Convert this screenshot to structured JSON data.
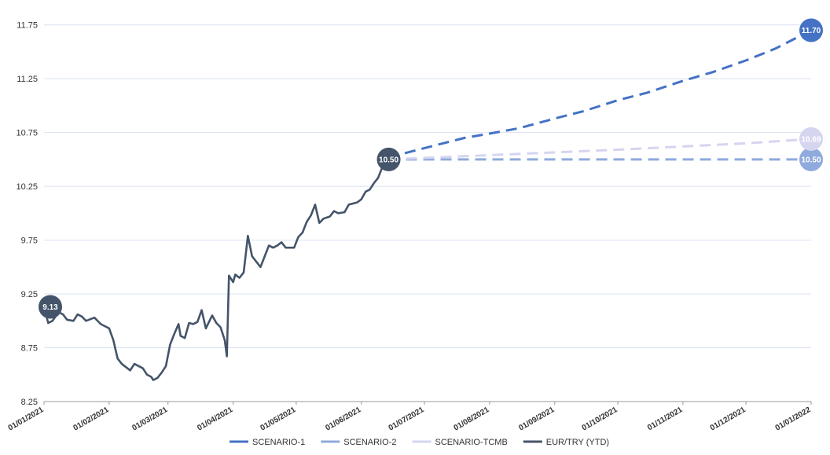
{
  "chart_data": {
    "type": "line",
    "title": "",
    "xlabel": "",
    "ylabel": "",
    "x_ticks": [
      "01/01/2021",
      "01/02/2021",
      "01/03/2021",
      "01/04/2021",
      "01/05/2021",
      "01/06/2021",
      "01/07/2021",
      "01/08/2021",
      "01/09/2021",
      "01/10/2021",
      "01/11/2021",
      "01/12/2021",
      "01/01/2022"
    ],
    "y_ticks": [
      "8.25",
      "8.75",
      "9.25",
      "9.75",
      "10.25",
      "10.75",
      "11.25",
      "11.75"
    ],
    "ylim": [
      8.25,
      11.85
    ],
    "grid": "horizontal",
    "legend_position": "bottom",
    "series": [
      {
        "name": "SCENARIO-1",
        "color": "#4472C4",
        "style": "dashed",
        "end_label": "11.70",
        "points": [
          [
            "2021-06-14",
            10.5
          ],
          [
            "2021-06-20",
            10.55
          ],
          [
            "2021-06-30",
            10.6
          ],
          [
            "2021-07-10",
            10.65
          ],
          [
            "2021-07-20",
            10.7
          ],
          [
            "2021-08-01",
            10.74
          ],
          [
            "2021-08-15",
            10.79
          ],
          [
            "2021-09-01",
            10.88
          ],
          [
            "2021-09-15",
            10.95
          ],
          [
            "2021-10-01",
            11.05
          ],
          [
            "2021-10-15",
            11.12
          ],
          [
            "2021-11-01",
            11.23
          ],
          [
            "2021-11-15",
            11.31
          ],
          [
            "2021-12-01",
            11.42
          ],
          [
            "2021-12-15",
            11.53
          ],
          [
            "2022-01-01",
            11.7
          ]
        ]
      },
      {
        "name": "SCENARIO-2",
        "color": "#8FAADC",
        "style": "dashed",
        "end_label": "10.50",
        "points": [
          [
            "2021-06-14",
            10.5
          ],
          [
            "2022-01-01",
            10.5
          ]
        ]
      },
      {
        "name": "SCENARIO-TCMB",
        "color": "#D5D5F0",
        "style": "dashed",
        "end_label": "10.69",
        "points": [
          [
            "2021-06-14",
            10.5
          ],
          [
            "2021-08-01",
            10.54
          ],
          [
            "2021-10-01",
            10.59
          ],
          [
            "2021-12-01",
            10.65
          ],
          [
            "2022-01-01",
            10.69
          ]
        ]
      },
      {
        "name": "EUR/TRY (YTD)",
        "color": "#44546A",
        "style": "solid",
        "start_label": "9.13",
        "end_label": "10.50",
        "points": [
          [
            "2021-01-01",
            9.13
          ],
          [
            "2021-01-03",
            8.98
          ],
          [
            "2021-01-05",
            9.0
          ],
          [
            "2021-01-08",
            9.08
          ],
          [
            "2021-01-10",
            9.06
          ],
          [
            "2021-01-12",
            9.01
          ],
          [
            "2021-01-15",
            9.0
          ],
          [
            "2021-01-17",
            9.06
          ],
          [
            "2021-01-19",
            9.04
          ],
          [
            "2021-01-21",
            9.0
          ],
          [
            "2021-01-25",
            9.03
          ],
          [
            "2021-01-28",
            8.97
          ],
          [
            "2021-02-01",
            8.93
          ],
          [
            "2021-02-03",
            8.82
          ],
          [
            "2021-02-05",
            8.65
          ],
          [
            "2021-02-07",
            8.6
          ],
          [
            "2021-02-09",
            8.57
          ],
          [
            "2021-02-11",
            8.54
          ],
          [
            "2021-02-13",
            8.6
          ],
          [
            "2021-02-15",
            8.58
          ],
          [
            "2021-02-17",
            8.56
          ],
          [
            "2021-02-19",
            8.5
          ],
          [
            "2021-02-21",
            8.48
          ],
          [
            "2021-02-22",
            8.45
          ],
          [
            "2021-02-24",
            8.47
          ],
          [
            "2021-02-26",
            8.52
          ],
          [
            "2021-02-28",
            8.58
          ],
          [
            "2021-03-02",
            8.78
          ],
          [
            "2021-03-04",
            8.88
          ],
          [
            "2021-03-06",
            8.97
          ],
          [
            "2021-03-07",
            8.86
          ],
          [
            "2021-03-09",
            8.84
          ],
          [
            "2021-03-11",
            8.98
          ],
          [
            "2021-03-13",
            8.97
          ],
          [
            "2021-03-15",
            8.99
          ],
          [
            "2021-03-17",
            9.1
          ],
          [
            "2021-03-19",
            8.93
          ],
          [
            "2021-03-22",
            9.05
          ],
          [
            "2021-03-24",
            8.98
          ],
          [
            "2021-03-26",
            8.94
          ],
          [
            "2021-03-28",
            8.82
          ],
          [
            "2021-03-29",
            8.67
          ],
          [
            "2021-03-30",
            9.42
          ],
          [
            "2021-04-01",
            9.36
          ],
          [
            "2021-04-02",
            9.43
          ],
          [
            "2021-04-04",
            9.4
          ],
          [
            "2021-04-06",
            9.45
          ],
          [
            "2021-04-08",
            9.79
          ],
          [
            "2021-04-10",
            9.6
          ],
          [
            "2021-04-14",
            9.5
          ],
          [
            "2021-04-16",
            9.6
          ],
          [
            "2021-04-18",
            9.7
          ],
          [
            "2021-04-20",
            9.68
          ],
          [
            "2021-04-22",
            9.7
          ],
          [
            "2021-04-24",
            9.73
          ],
          [
            "2021-04-26",
            9.68
          ],
          [
            "2021-04-30",
            9.68
          ],
          [
            "2021-05-02",
            9.78
          ],
          [
            "2021-05-04",
            9.82
          ],
          [
            "2021-05-06",
            9.92
          ],
          [
            "2021-05-08",
            9.98
          ],
          [
            "2021-05-10",
            10.08
          ],
          [
            "2021-05-12",
            9.91
          ],
          [
            "2021-05-14",
            9.95
          ],
          [
            "2021-05-17",
            9.97
          ],
          [
            "2021-05-19",
            10.02
          ],
          [
            "2021-05-21",
            10.0
          ],
          [
            "2021-05-24",
            10.01
          ],
          [
            "2021-05-26",
            10.08
          ],
          [
            "2021-05-30",
            10.1
          ],
          [
            "2021-06-01",
            10.13
          ],
          [
            "2021-06-03",
            10.2
          ],
          [
            "2021-06-05",
            10.22
          ],
          [
            "2021-06-07",
            10.28
          ],
          [
            "2021-06-09",
            10.33
          ],
          [
            "2021-06-11",
            10.43
          ],
          [
            "2021-06-14",
            10.5
          ]
        ]
      }
    ]
  }
}
